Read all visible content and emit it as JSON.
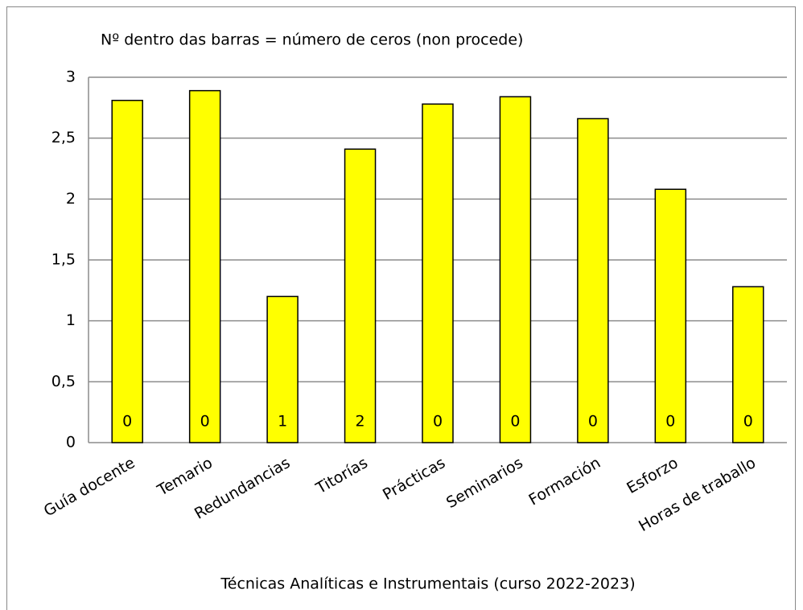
{
  "chart_data": {
    "type": "bar",
    "title": "Nº dentro das barras = número de ceros (non procede)",
    "x_label": "Técnicas Analíticas e Instrumentais (curso 2022-2023)",
    "categories": [
      "Guía docente",
      "Temario",
      "Redundancias",
      "Titorías",
      "Prácticas",
      "Seminarios",
      "Formación",
      "Esforzo",
      "Horas de traballo"
    ],
    "values": [
      2.81,
      2.89,
      1.2,
      2.41,
      2.78,
      2.84,
      2.66,
      2.08,
      1.28
    ],
    "bar_annotations": [
      0,
      0,
      1,
      2,
      0,
      0,
      0,
      0,
      0
    ],
    "color": "#ffff00",
    "ylim": [
      0,
      3
    ],
    "yticks": [
      0,
      {
        "value": 0.5,
        "label": "0,5"
      },
      1,
      {
        "value": 1.5,
        "label": "1,5"
      },
      2,
      {
        "value": 2.5,
        "label": "2,5"
      },
      3
    ],
    "grid": true
  }
}
